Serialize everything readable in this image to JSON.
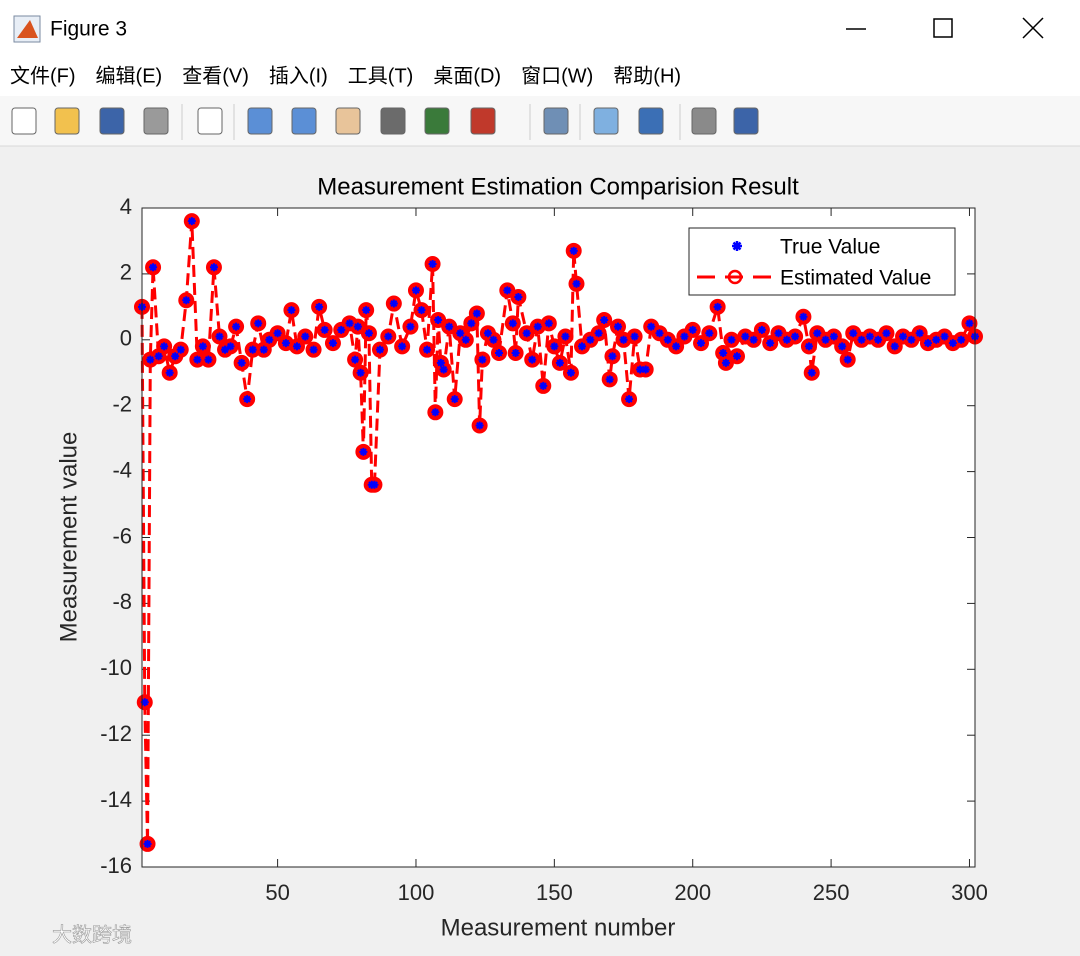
{
  "window": {
    "title": "Figure 3",
    "menu": [
      "文件(F)",
      "编辑(E)",
      "查看(V)",
      "插入(I)",
      "工具(T)",
      "桌面(D)",
      "窗口(W)",
      "帮助(H)"
    ],
    "watermark": "大数跨境"
  },
  "chart_data": {
    "type": "line",
    "title": "Measurement Estimation Comparision Result",
    "xlabel": "Measurement number",
    "ylabel": "Measurement value",
    "xlim": [
      1,
      302
    ],
    "ylim": [
      -16,
      4
    ],
    "xticks": [
      50,
      100,
      150,
      200,
      250,
      300
    ],
    "yticks": [
      -16,
      -14,
      -12,
      -10,
      -8,
      -6,
      -4,
      -2,
      0,
      2,
      4
    ],
    "legend": "upper right",
    "x": [
      1,
      2,
      3,
      4,
      5,
      7,
      9,
      11,
      13,
      15,
      17,
      19,
      21,
      23,
      25,
      27,
      29,
      31,
      33,
      35,
      37,
      39,
      41,
      43,
      45,
      47,
      50,
      53,
      55,
      57,
      60,
      63,
      65,
      67,
      70,
      73,
      76,
      78,
      79,
      80,
      81,
      82,
      83,
      84,
      85,
      87,
      90,
      92,
      95,
      98,
      100,
      102,
      104,
      106,
      107,
      108,
      109,
      110,
      112,
      114,
      116,
      118,
      120,
      122,
      123,
      124,
      126,
      128,
      130,
      133,
      135,
      136,
      137,
      140,
      142,
      144,
      146,
      148,
      150,
      152,
      154,
      156,
      157,
      158,
      160,
      163,
      166,
      168,
      170,
      171,
      173,
      175,
      177,
      179,
      181,
      183,
      185,
      188,
      191,
      194,
      197,
      200,
      203,
      206,
      209,
      211,
      212,
      214,
      216,
      219,
      222,
      225,
      228,
      231,
      234,
      237,
      240,
      242,
      243,
      245,
      248,
      251,
      254,
      256,
      258,
      261,
      264,
      267,
      270,
      273,
      276,
      279,
      282,
      285,
      288,
      291,
      294,
      297,
      300,
      302
    ],
    "series": [
      {
        "name": "True Value",
        "color": "#0000ff",
        "marker": "asterisk",
        "values": [
          1.0,
          -11.0,
          -15.3,
          -0.6,
          2.2,
          -0.5,
          -0.2,
          -1.0,
          -0.5,
          -0.3,
          1.2,
          3.6,
          -0.6,
          -0.2,
          -0.6,
          2.2,
          0.1,
          -0.3,
          -0.2,
          0.4,
          -0.7,
          -1.8,
          -0.3,
          0.5,
          -0.3,
          0.0,
          0.2,
          -0.1,
          0.9,
          -0.2,
          0.1,
          -0.3,
          1.0,
          0.3,
          -0.1,
          0.3,
          0.5,
          -0.6,
          0.4,
          -1.0,
          -3.4,
          0.9,
          0.2,
          -4.4,
          -4.4,
          -0.3,
          0.1,
          1.1,
          -0.2,
          0.4,
          1.5,
          0.9,
          -0.3,
          2.3,
          -2.2,
          0.6,
          -0.7,
          -0.9,
          0.4,
          -1.8,
          0.2,
          0.0,
          0.5,
          0.8,
          -2.6,
          -0.6,
          0.2,
          0.0,
          -0.4,
          1.5,
          0.5,
          -0.4,
          1.3,
          0.2,
          -0.6,
          0.4,
          -1.4,
          0.5,
          -0.2,
          -0.7,
          0.1,
          -1.0,
          2.7,
          1.7,
          -0.2,
          0.0,
          0.2,
          0.6,
          -1.2,
          -0.5,
          0.4,
          0.0,
          -1.8,
          0.1,
          -0.9,
          -0.9,
          0.4,
          0.2,
          0.0,
          -0.2,
          0.1,
          0.3,
          -0.1,
          0.2,
          1.0,
          -0.4,
          -0.7,
          0.0,
          -0.5,
          0.1,
          0.0,
          0.3,
          -0.1,
          0.2,
          0.0,
          0.1,
          0.7,
          -0.2,
          -1.0,
          0.2,
          0.0,
          0.1,
          -0.2,
          -0.6,
          0.2,
          0.0,
          0.1,
          0.0,
          0.2,
          -0.2,
          0.1,
          0.0,
          0.2,
          -0.1,
          0.0,
          0.1,
          -0.1,
          0.0,
          0.5,
          0.1
        ]
      },
      {
        "name": "Estimated Value",
        "color": "#ff0000",
        "marker": "circle",
        "linestyle": "dashed",
        "values": [
          1.0,
          -11.0,
          -15.3,
          -0.6,
          2.2,
          -0.5,
          -0.2,
          -1.0,
          -0.5,
          -0.3,
          1.2,
          3.6,
          -0.6,
          -0.2,
          -0.6,
          2.2,
          0.1,
          -0.3,
          -0.2,
          0.4,
          -0.7,
          -1.8,
          -0.3,
          0.5,
          -0.3,
          0.0,
          0.2,
          -0.1,
          0.9,
          -0.2,
          0.1,
          -0.3,
          1.0,
          0.3,
          -0.1,
          0.3,
          0.5,
          -0.6,
          0.4,
          -1.0,
          -3.4,
          0.9,
          0.2,
          -4.4,
          -4.4,
          -0.3,
          0.1,
          1.1,
          -0.2,
          0.4,
          1.5,
          0.9,
          -0.3,
          2.3,
          -2.2,
          0.6,
          -0.7,
          -0.9,
          0.4,
          -1.8,
          0.2,
          0.0,
          0.5,
          0.8,
          -2.6,
          -0.6,
          0.2,
          0.0,
          -0.4,
          1.5,
          0.5,
          -0.4,
          1.3,
          0.2,
          -0.6,
          0.4,
          -1.4,
          0.5,
          -0.2,
          -0.7,
          0.1,
          -1.0,
          2.7,
          1.7,
          -0.2,
          0.0,
          0.2,
          0.6,
          -1.2,
          -0.5,
          0.4,
          0.0,
          -1.8,
          0.1,
          -0.9,
          -0.9,
          0.4,
          0.2,
          0.0,
          -0.2,
          0.1,
          0.3,
          -0.1,
          0.2,
          1.0,
          -0.4,
          -0.7,
          0.0,
          -0.5,
          0.1,
          0.0,
          0.3,
          -0.1,
          0.2,
          0.0,
          0.1,
          0.7,
          -0.2,
          -1.0,
          0.2,
          0.0,
          0.1,
          -0.2,
          -0.6,
          0.2,
          0.0,
          0.1,
          0.0,
          0.2,
          -0.2,
          0.1,
          0.0,
          0.2,
          -0.1,
          0.0,
          0.1,
          -0.1,
          0.0,
          0.5,
          0.1
        ]
      }
    ]
  }
}
